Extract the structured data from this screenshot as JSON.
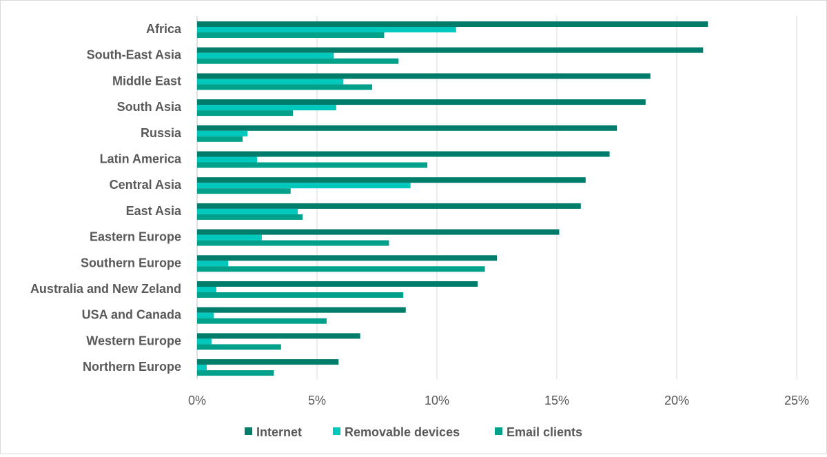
{
  "chart_data": {
    "type": "bar",
    "orientation": "horizontal",
    "categories": [
      "Africa",
      "South-East Asia",
      "Middle East",
      "South Asia",
      "Russia",
      "Latin America",
      "Central Asia",
      "East Asia",
      "Eastern Europe",
      "Southern Europe",
      "Australia and New Zeland",
      "USA and Canada",
      "Western Europe",
      "Northern Europe"
    ],
    "series": [
      {
        "name": "Internet",
        "color": "#007c6a",
        "values": [
          21.3,
          21.1,
          18.9,
          18.7,
          17.5,
          17.2,
          16.2,
          16.0,
          15.1,
          12.5,
          11.7,
          8.7,
          6.8,
          5.9
        ]
      },
      {
        "name": "Removable devices",
        "color": "#00c8bc",
        "values": [
          10.8,
          5.7,
          6.1,
          5.8,
          2.1,
          2.5,
          8.9,
          4.2,
          2.7,
          1.3,
          0.8,
          0.7,
          0.6,
          0.4
        ]
      },
      {
        "name": "Email clients",
        "color": "#00a08a",
        "values": [
          7.8,
          8.4,
          7.3,
          4.0,
          1.9,
          9.6,
          3.9,
          4.4,
          8.0,
          12.0,
          8.6,
          5.4,
          3.5,
          3.2
        ]
      }
    ],
    "xlim": [
      0,
      25
    ],
    "xticks": [
      "0%",
      "5%",
      "10%",
      "15%",
      "20%",
      "25%"
    ],
    "unit": "%",
    "grid": "vertical",
    "legend": "bottom",
    "title": "",
    "xlabel": "",
    "ylabel": ""
  }
}
